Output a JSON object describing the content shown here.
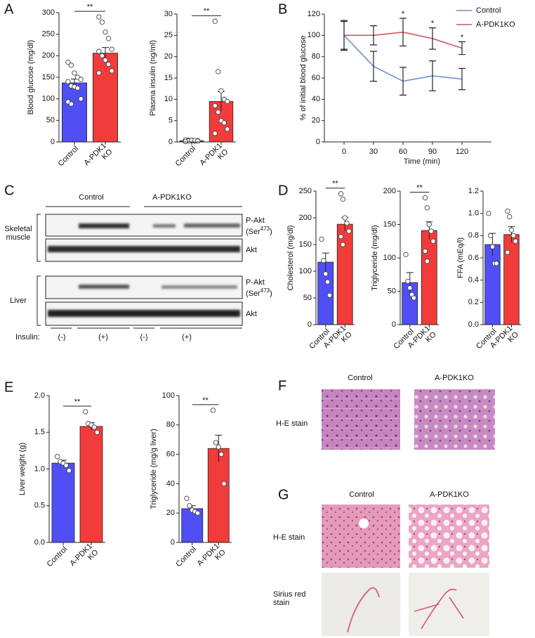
{
  "chart_data": [
    {
      "type": "bar",
      "ylabel": "Blood glucose (mg/dl)",
      "categories": [
        "Control",
        "A-PDK1\nKO"
      ],
      "values": [
        137,
        206
      ],
      "errors": [
        9,
        13
      ],
      "colors": [
        "#4f4ff5",
        "#f23b3b"
      ],
      "points": [
        [
          185,
          178,
          160,
          150,
          145,
          140,
          130,
          128,
          125,
          100,
          93,
          88
        ],
        [
          290,
          278,
          255,
          240,
          215,
          210,
          200,
          190,
          180,
          165,
          160
        ]
      ],
      "ylim": [
        0,
        300
      ],
      "yticks": [
        0,
        50,
        100,
        150,
        200,
        250,
        300
      ],
      "significance": "**"
    },
    {
      "type": "bar",
      "ylabel": "Plasma insulin (ng/ml)",
      "categories": [
        "Control",
        "A-PDK1\nKO"
      ],
      "values": [
        0.3,
        9.5
      ],
      "errors": [
        0.1,
        2.3
      ],
      "colors": [
        "#4f4ff5",
        "#f23b3b"
      ],
      "points": [
        [
          0.5,
          0.4,
          0.3,
          0.2,
          0.3,
          0.1,
          0.2,
          0.4,
          0.3,
          0.2,
          0.1
        ],
        [
          28.3,
          16.5,
          12,
          10,
          9.5,
          8.5,
          7,
          5,
          4.5,
          3,
          2
        ]
      ],
      "ylim": [
        0,
        30
      ],
      "yticks": [
        0,
        5,
        10,
        15,
        20,
        25,
        30
      ],
      "significance": "**"
    },
    {
      "type": "line",
      "xlabel": "Time (min)",
      "ylabel": "% of initial blood glucose",
      "x": [
        0,
        30,
        60,
        90,
        120
      ],
      "series": [
        {
          "name": "Control",
          "color": "#6b8fd4",
          "values": [
            100,
            71,
            57,
            62,
            59
          ],
          "errors": [
            13,
            14,
            13,
            14,
            10
          ]
        },
        {
          "name": "A-PDK1KO",
          "color": "#c9575f",
          "values": [
            100,
            100,
            103,
            97,
            88
          ],
          "errors": [
            14,
            9,
            13,
            10,
            6
          ]
        }
      ],
      "xlim": [
        -20,
        150
      ],
      "xticks": [
        0,
        30,
        60,
        90,
        120
      ],
      "ylim": [
        0,
        120
      ],
      "yticks": [
        0,
        20,
        40,
        60,
        80,
        100,
        120
      ],
      "legend": "upper right",
      "annotations": [
        {
          "x": 60,
          "text": "*"
        },
        {
          "x": 90,
          "text": "*"
        },
        {
          "x": 120,
          "text": "*"
        }
      ]
    },
    {
      "type": "bar",
      "ylabel": "Cholesterol (mg/dl)",
      "categories": [
        "Control",
        "A-PDK1\nKO"
      ],
      "values": [
        117,
        188
      ],
      "errors": [
        17,
        13
      ],
      "colors": [
        "#4f4ff5",
        "#f23b3b"
      ],
      "points": [
        [
          160,
          120,
          95,
          80,
          55
        ],
        [
          245,
          235,
          200,
          190,
          175,
          165,
          150
        ]
      ],
      "ylim": [
        0,
        250
      ],
      "yticks": [
        0,
        50,
        100,
        150,
        200,
        250
      ],
      "significance": "**"
    },
    {
      "type": "bar",
      "ylabel": "Triglyceride (mg/dl)",
      "categories": [
        "Control",
        "A-PDK1\nKO"
      ],
      "values": [
        63,
        141
      ],
      "errors": [
        15,
        13
      ],
      "colors": [
        "#4f4ff5",
        "#f23b3b"
      ],
      "points": [
        [
          105,
          65,
          55,
          45,
          40
        ],
        [
          190,
          175,
          150,
          140,
          125,
          110,
          95
        ]
      ],
      "ylim": [
        0,
        200
      ],
      "yticks": [
        0,
        50,
        100,
        150,
        200
      ],
      "significance": "**"
    },
    {
      "type": "bar",
      "ylabel": "FFA (mEq/l)",
      "categories": [
        "Control",
        "A-PDK1\nKO"
      ],
      "values": [
        0.72,
        0.81
      ],
      "errors": [
        0.1,
        0.07
      ],
      "colors": [
        "#4f4ff5",
        "#f23b3b"
      ],
      "points": [
        [
          1.0,
          0.8,
          0.7,
          0.55,
          0.55
        ],
        [
          1.02,
          0.97,
          0.85,
          0.8,
          0.75,
          0.65
        ]
      ],
      "ylim": [
        0,
        1.2
      ],
      "yticks": [
        {
          "value": 0,
          "label": "0.0"
        },
        0.2,
        0.4,
        0.6,
        0.8,
        {
          "value": 1,
          "label": "1.0"
        },
        1.2
      ]
    },
    {
      "type": "bar",
      "ylabel": "Liver weight (g)",
      "categories": [
        "Control",
        "A-PDK1\nKO"
      ],
      "values": [
        1.08,
        1.58
      ],
      "errors": [
        0.04,
        0.05
      ],
      "colors": [
        "#4f4ff5",
        "#f23b3b"
      ],
      "points": [
        [
          1.17,
          1.1,
          1.08,
          1.05,
          0.98
        ],
        [
          1.78,
          1.62,
          1.6,
          1.57,
          1.5
        ]
      ],
      "ylim": [
        0,
        2
      ],
      "yticks": [
        {
          "value": 0,
          "label": "0.0"
        },
        0.5,
        {
          "value": 1,
          "label": "1.0"
        },
        1.5,
        {
          "value": 2,
          "label": "2.0"
        }
      ],
      "significance": "**"
    },
    {
      "type": "bar",
      "ylabel": "Triglyceride (mg/g liver)",
      "categories": [
        "Control",
        "A-PDK1\nKO"
      ],
      "values": [
        23,
        64
      ],
      "errors": [
        2,
        9
      ],
      "colors": [
        "#4f4ff5",
        "#f23b3b"
      ],
      "points": [
        [
          30,
          25,
          22,
          21,
          20
        ],
        [
          90,
          68,
          65,
          60,
          40
        ]
      ],
      "ylim": [
        0,
        100
      ],
      "yticks": [
        0,
        20,
        40,
        60,
        80,
        100
      ],
      "significance": "**"
    }
  ],
  "panel_labels": [
    "A",
    "B",
    "C",
    "D",
    "E",
    "F",
    "G"
  ],
  "blot": {
    "groups": [
      "Control",
      "A-PDK1KO"
    ],
    "tissues": [
      "Skeletal\nmuscle",
      "Liver"
    ],
    "phospho": {
      "name": "P-Akt",
      "prefix": "(Ser",
      "superscript": "473",
      "suffix": ")"
    },
    "total": "Akt",
    "insulin": {
      "label": "Insulin:",
      "conditions": [
        "(-)",
        "(+)",
        "(-)",
        "(+)"
      ]
    }
  },
  "histology_f": {
    "columns": [
      "Control",
      "A-PDK1KO"
    ],
    "rows": [
      "H-E stain"
    ]
  },
  "histology_g": {
    "columns": [
      "Control",
      "A-PDK1KO"
    ],
    "rows": [
      "H-E stain",
      "Sirius red\nstain"
    ]
  }
}
